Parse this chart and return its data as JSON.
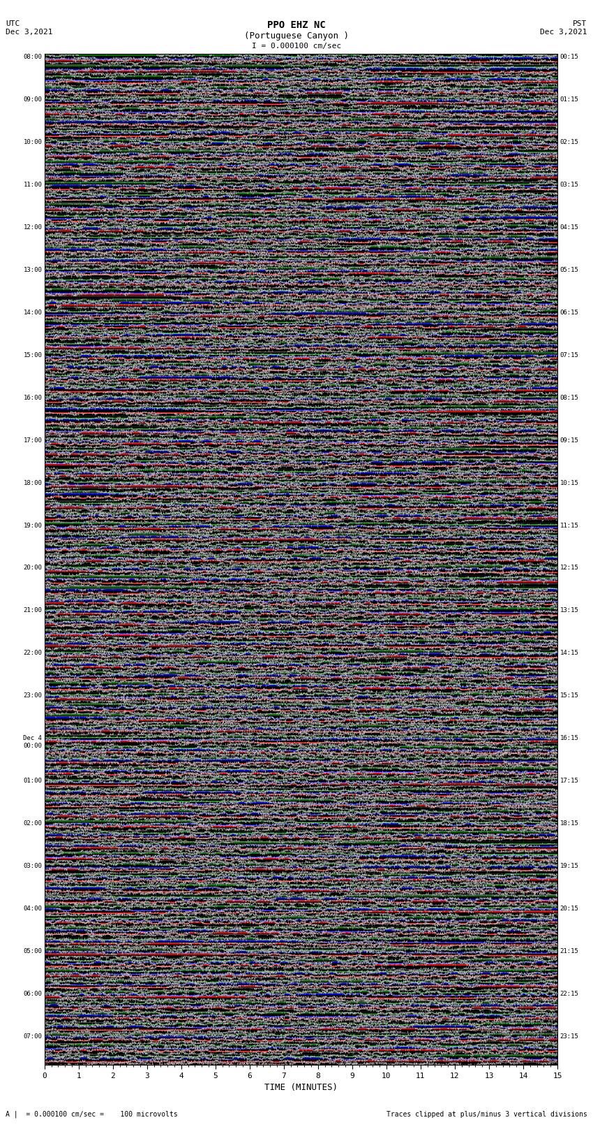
{
  "title": "PPO EHZ NC",
  "subtitle": "(Portuguese Canyon )",
  "scale_label": "I = 0.000100 cm/sec",
  "utc_label": "UTC\nDec 3,2021",
  "pst_label": "PST\nDec 3,2021",
  "xlabel": "TIME (MINUTES)",
  "footer_left": "A |  = 0.000100 cm/sec =    100 microvolts",
  "footer_right": "Traces clipped at plus/minus 3 vertical divisions",
  "background_color": "#ffffff",
  "colors": [
    "#000000",
    "#ff0000",
    "#0000ff",
    "#008000"
  ],
  "x_min": 0,
  "x_max": 15,
  "x_ticks": [
    0,
    1,
    2,
    3,
    4,
    5,
    6,
    7,
    8,
    9,
    10,
    11,
    12,
    13,
    14,
    15
  ],
  "left_times": [
    "08:00",
    "",
    "",
    "",
    "09:00",
    "",
    "",
    "",
    "10:00",
    "",
    "",
    "",
    "11:00",
    "",
    "",
    "",
    "12:00",
    "",
    "",
    "",
    "13:00",
    "",
    "",
    "",
    "14:00",
    "",
    "",
    "",
    "15:00",
    "",
    "",
    "",
    "16:00",
    "",
    "",
    "",
    "17:00",
    "",
    "",
    "",
    "18:00",
    "",
    "",
    "",
    "19:00",
    "",
    "",
    "",
    "20:00",
    "",
    "",
    "",
    "21:00",
    "",
    "",
    "",
    "22:00",
    "",
    "",
    "",
    "23:00",
    "",
    "",
    "",
    "Dec 4\n00:00",
    "",
    "",
    "",
    "01:00",
    "",
    "",
    "",
    "02:00",
    "",
    "",
    "",
    "03:00",
    "",
    "",
    "",
    "04:00",
    "",
    "",
    "",
    "05:00",
    "",
    "",
    "",
    "06:00",
    "",
    "",
    "",
    "07:00",
    "",
    ""
  ],
  "right_times": [
    "00:15",
    "",
    "",
    "",
    "01:15",
    "",
    "",
    "",
    "02:15",
    "",
    "",
    "",
    "03:15",
    "",
    "",
    "",
    "04:15",
    "",
    "",
    "",
    "05:15",
    "",
    "",
    "",
    "06:15",
    "",
    "",
    "",
    "07:15",
    "",
    "",
    "",
    "08:15",
    "",
    "",
    "",
    "09:15",
    "",
    "",
    "",
    "10:15",
    "",
    "",
    "",
    "11:15",
    "",
    "",
    "",
    "12:15",
    "",
    "",
    "",
    "13:15",
    "",
    "",
    "",
    "14:15",
    "",
    "",
    "",
    "15:15",
    "",
    "",
    "",
    "16:15",
    "",
    "",
    "",
    "17:15",
    "",
    "",
    "",
    "18:15",
    "",
    "",
    "",
    "19:15",
    "",
    "",
    "",
    "20:15",
    "",
    "",
    "",
    "21:15",
    "",
    "",
    "",
    "22:15",
    "",
    "",
    "",
    "23:15",
    "",
    ""
  ],
  "seed": 42
}
